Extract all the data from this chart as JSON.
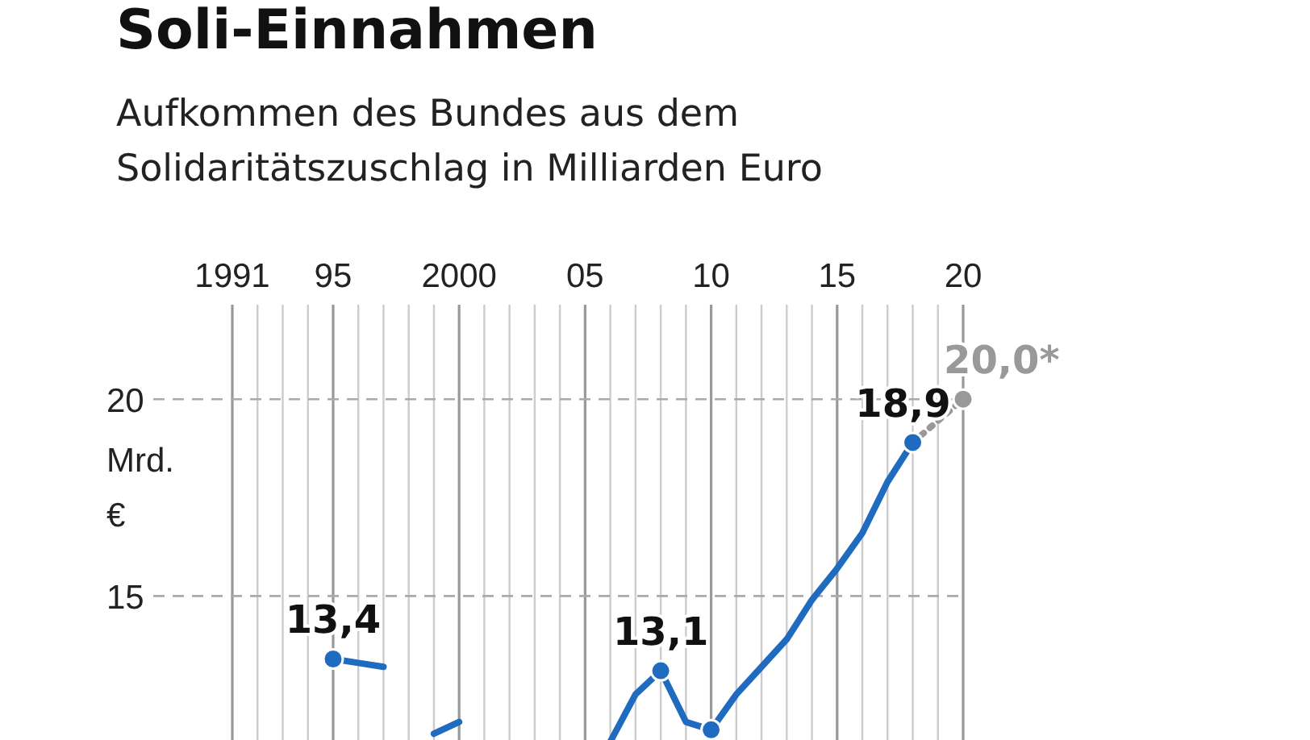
{
  "chart_data": {
    "type": "line",
    "title": "Soli-Einnahmen",
    "subtitle": "Aufkommen des Bundes aus dem\nSolidaritätszuschlag in Milliarden Euro",
    "ylabel": "Mrd. €",
    "xlim": [
      1991,
      2020
    ],
    "ylim": [
      11.3,
      22.4
    ],
    "xticks": [
      {
        "value": 1991,
        "label": "1991"
      },
      {
        "value": 1992,
        "label": null
      },
      {
        "value": 1993,
        "label": null
      },
      {
        "value": 1994,
        "label": null
      },
      {
        "value": 1995,
        "label": "95"
      },
      {
        "value": 1996,
        "label": null
      },
      {
        "value": 1997,
        "label": null
      },
      {
        "value": 1998,
        "label": null
      },
      {
        "value": 1999,
        "label": null
      },
      {
        "value": 2000,
        "label": "2000"
      },
      {
        "value": 2001,
        "label": null
      },
      {
        "value": 2002,
        "label": null
      },
      {
        "value": 2003,
        "label": null
      },
      {
        "value": 2004,
        "label": null
      },
      {
        "value": 2005,
        "label": "05"
      },
      {
        "value": 2006,
        "label": null
      },
      {
        "value": 2007,
        "label": null
      },
      {
        "value": 2008,
        "label": null
      },
      {
        "value": 2009,
        "label": null
      },
      {
        "value": 2010,
        "label": "10"
      },
      {
        "value": 2011,
        "label": null
      },
      {
        "value": 2012,
        "label": null
      },
      {
        "value": 2013,
        "label": null
      },
      {
        "value": 2014,
        "label": null
      },
      {
        "value": 2015,
        "label": "15"
      },
      {
        "value": 2016,
        "label": null
      },
      {
        "value": 2017,
        "label": null
      },
      {
        "value": 2018,
        "label": null
      },
      {
        "value": 2019,
        "label": null
      },
      {
        "value": 2020,
        "label": "20"
      }
    ],
    "yticks": [
      15,
      20
    ],
    "grid": true,
    "marker": "none",
    "series": [
      {
        "color": "#1f6bbf",
        "line_style": "solid",
        "x": [
          1995,
          1996,
          1997,
          1998,
          1999,
          2000,
          2001,
          2002,
          2003,
          2004,
          2005,
          2006,
          2007,
          2008,
          2009,
          2010,
          2011,
          2012,
          2013,
          2014,
          2015,
          2016,
          2017,
          2018
        ],
        "values": [
          13.4,
          13.3,
          13.2,
          null,
          11.5,
          11.8,
          null,
          null,
          null,
          null,
          null,
          11.3,
          12.5,
          13.1,
          11.8,
          11.6,
          12.5,
          13.2,
          13.9,
          14.9,
          15.7,
          16.6,
          17.9,
          18.9
        ]
      },
      {
        "color": "#999999",
        "line_style": "dotted",
        "x": [
          2018,
          2020
        ],
        "values": [
          18.9,
          20.0
        ]
      },
      {
        "type": "scatter",
        "color": "#1f6bbf",
        "marker": "circle",
        "x": [
          1995,
          2008,
          2010,
          2018
        ],
        "values": [
          13.4,
          13.1,
          11.6,
          18.9
        ],
        "value_labels": [
          "13,4",
          "13,1",
          null,
          "18,9"
        ]
      },
      {
        "type": "scatter",
        "color": "#999999",
        "marker": "circle",
        "x": [
          2020
        ],
        "values": [
          20.0
        ],
        "value_labels": [
          "20,0*"
        ]
      }
    ]
  }
}
